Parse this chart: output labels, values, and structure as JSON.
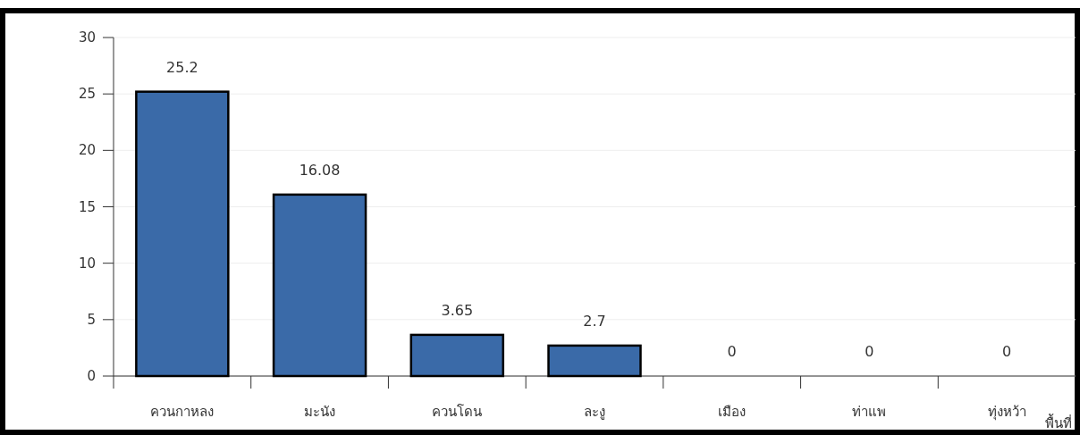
{
  "chart_data": {
    "type": "bar",
    "xlabel": "พื้นที่",
    "categories": [
      "ควนกาหลง",
      "มะนัง",
      "ควนโดน",
      "ละงู",
      "เมือง",
      "ท่าแพ",
      "ทุ่งหว้า"
    ],
    "values": [
      25.2,
      16.08,
      3.65,
      2.7,
      0,
      0,
      0
    ],
    "color": "#3a6aa8",
    "ylim": [
      0,
      30
    ],
    "yticks": [
      0,
      5,
      10,
      15,
      20,
      25,
      30
    ],
    "grid": "y",
    "data_labels": true
  }
}
